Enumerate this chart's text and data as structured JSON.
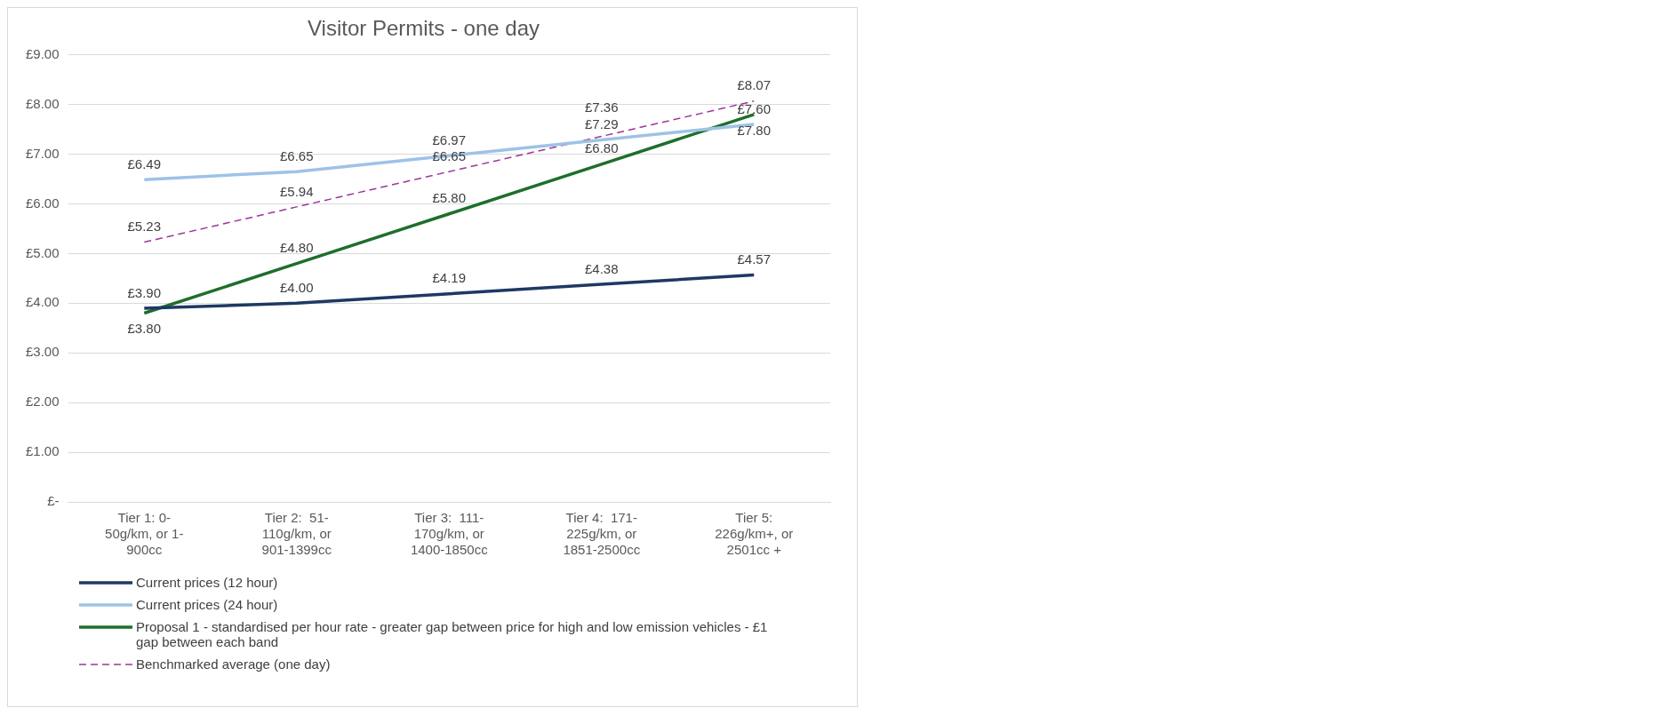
{
  "chart_data": {
    "type": "line",
    "title": "Visitor Permits - one day",
    "categories": [
      "Tier 1: 0-\n50g/km, or 1-\n900cc",
      "Tier 2:  51-\n110g/km, or\n901-1399cc",
      "Tier 3:  111-\n170g/km, or\n1400-1850cc",
      "Tier 4:  171-\n225g/km, or\n1851-2500cc",
      "Tier 5:\n226g/km+, or\n2501cc +"
    ],
    "series": [
      {
        "name": "Current prices (12 hour)",
        "color": "#1f3864",
        "values": [
          3.9,
          4.0,
          4.19,
          4.38,
          4.57
        ],
        "value_labels": [
          "£3.90",
          "£4.00",
          "£4.19",
          "£4.38",
          "£4.57"
        ]
      },
      {
        "name": "Current prices (24 hour)",
        "color": "#9dc3e6",
        "values": [
          6.49,
          6.65,
          6.97,
          7.29,
          7.6
        ],
        "value_labels": [
          "£6.49",
          "£6.65",
          "£6.97",
          "£7.29",
          "£7.60"
        ]
      },
      {
        "name": "Proposal 1 - standardised per hour rate - greater gap between price for high and low emission vehicles - £1 gap between each band",
        "color": "#1e6e2a",
        "values": [
          3.8,
          4.8,
          5.8,
          6.8,
          7.8
        ],
        "value_labels": [
          "£3.80",
          "£4.80",
          "£5.80",
          "£6.80",
          "£7.80"
        ]
      },
      {
        "name": "Benchmarked average (one day)",
        "color": "#a0359a",
        "line_style": "dashed",
        "values": [
          5.23,
          5.94,
          6.65,
          7.36,
          8.07
        ],
        "value_labels": [
          "£5.23",
          "£5.94",
          "£6.65",
          "£7.36",
          "£8.07"
        ]
      }
    ],
    "ylim": [
      0,
      9
    ],
    "yticks": [
      {
        "value": 0,
        "label": "£-"
      },
      {
        "value": 1,
        "label": "£1.00"
      },
      {
        "value": 2,
        "label": "£2.00"
      },
      {
        "value": 3,
        "label": "£3.00"
      },
      {
        "value": 4,
        "label": "£4.00"
      },
      {
        "value": 5,
        "label": "£5.00"
      },
      {
        "value": 6,
        "label": "£6.00"
      },
      {
        "value": 7,
        "label": "£7.00"
      },
      {
        "value": 8,
        "label": "£8.00"
      },
      {
        "value": 9,
        "label": "£9.00"
      }
    ],
    "grid": "y",
    "legend": "bottom",
    "marker": "none"
  }
}
